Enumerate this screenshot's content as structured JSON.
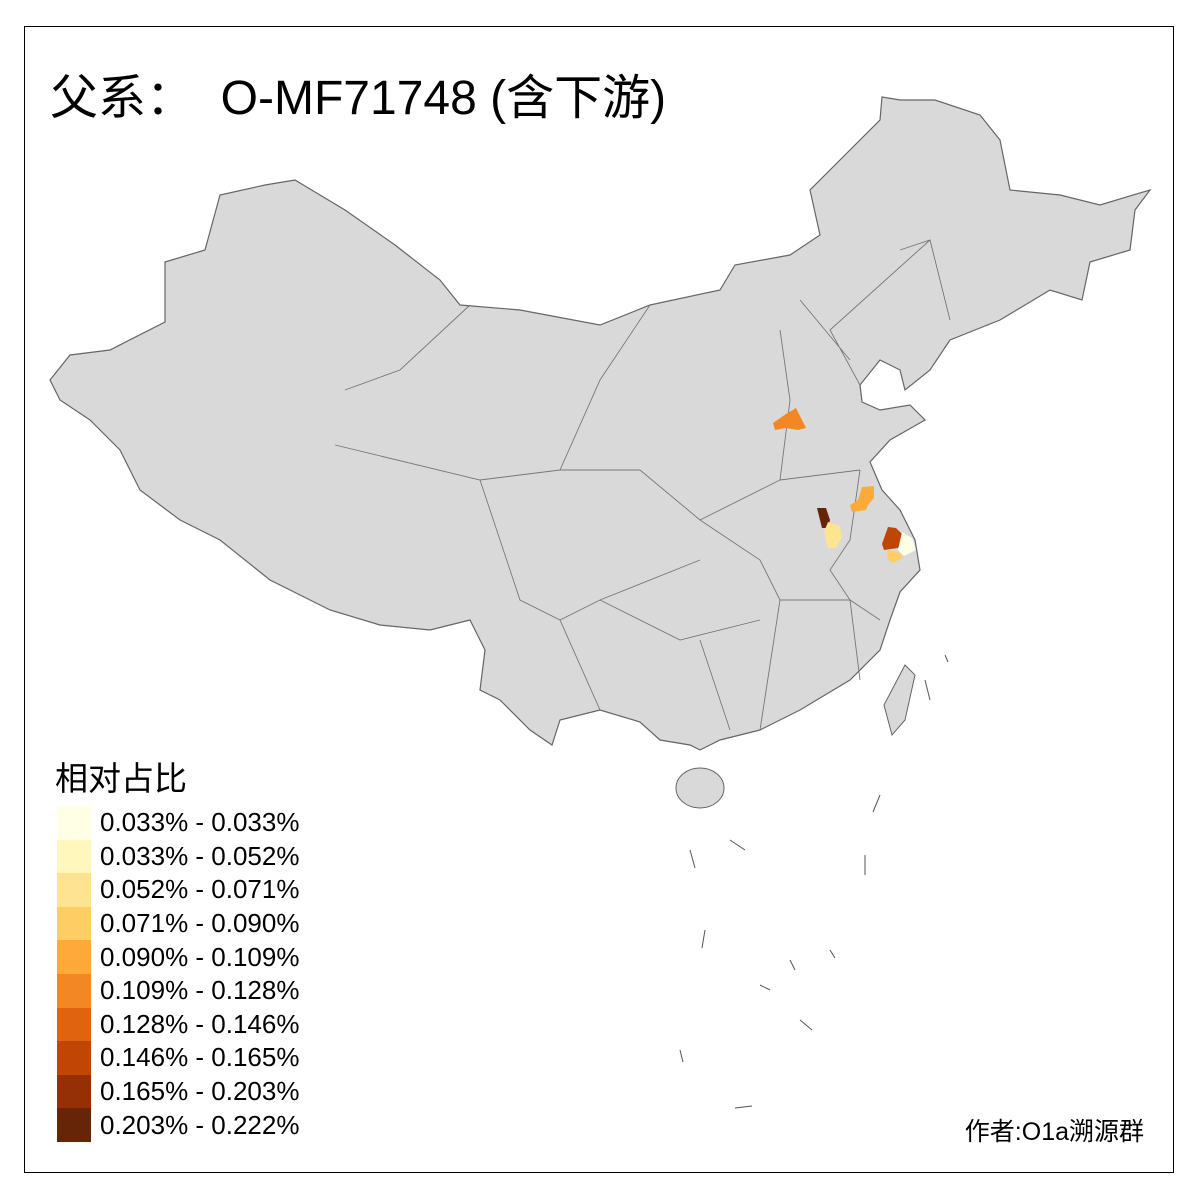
{
  "title": "父系：  O-MF71748 (含下游)",
  "legend": {
    "title": "相对占比",
    "items": [
      {
        "label": "0.033% - 0.033%",
        "color": "#FFFFE5"
      },
      {
        "label": "0.033% - 0.052%",
        "color": "#FFF7BC"
      },
      {
        "label": "0.052% - 0.071%",
        "color": "#FEE391"
      },
      {
        "label": "0.071% - 0.090%",
        "color": "#FECE65"
      },
      {
        "label": "0.090% - 0.109%",
        "color": "#FEAA3A"
      },
      {
        "label": "0.109% - 0.128%",
        "color": "#F38723"
      },
      {
        "label": "0.128% - 0.146%",
        "color": "#E0640F"
      },
      {
        "label": "0.146% - 0.165%",
        "color": "#BF4604"
      },
      {
        "label": "0.165% - 0.203%",
        "color": "#953004"
      },
      {
        "label": "0.203% - 0.222%",
        "color": "#662506"
      }
    ]
  },
  "map": {
    "base_color": "#D9D9D9",
    "border_color": "#666666",
    "highlighted_region_bins": [
      5,
      4,
      9,
      2,
      7,
      0,
      3
    ]
  },
  "credit": "作者:O1a溯源群"
}
